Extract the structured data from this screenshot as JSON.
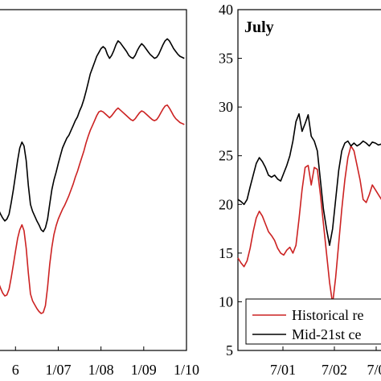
{
  "chart_data": [
    {
      "type": "line",
      "title": "",
      "xlabel": "",
      "ylabel": "",
      "x_ticks": [
        "6",
        "1/07",
        "1/08",
        "1/09",
        "1/10"
      ],
      "x_tick_values": [
        0,
        1,
        2,
        3,
        4
      ],
      "ylim": [
        5,
        40
      ],
      "xlim": [
        -0.4,
        4.0
      ],
      "grid": false,
      "series": [
        {
          "color": "#000000",
          "x": [
            -0.4,
            -0.35,
            -0.3,
            -0.25,
            -0.2,
            -0.15,
            -0.1,
            -0.05,
            0.0,
            0.05,
            0.1,
            0.15,
            0.2,
            0.25,
            0.3,
            0.35,
            0.4,
            0.45,
            0.5,
            0.55,
            0.6,
            0.65,
            0.7,
            0.75,
            0.8,
            0.85,
            0.9,
            0.95,
            1.0,
            1.05,
            1.1,
            1.15,
            1.2,
            1.25,
            1.3,
            1.35,
            1.4,
            1.45,
            1.5,
            1.55,
            1.6,
            1.65,
            1.7,
            1.75,
            1.8,
            1.85,
            1.9,
            1.95,
            2.0,
            2.05,
            2.1,
            2.15,
            2.2,
            2.25,
            2.3,
            2.35,
            2.4,
            2.45,
            2.5,
            2.55,
            2.6,
            2.65,
            2.7,
            2.75,
            2.8,
            2.85,
            2.9,
            2.95,
            3.0,
            3.05,
            3.1,
            3.15,
            3.2,
            3.25,
            3.3,
            3.35,
            3.4,
            3.45,
            3.5,
            3.55,
            3.6,
            3.65,
            3.7,
            3.75,
            3.8,
            3.85,
            3.9,
            3.95
          ],
          "values": [
            19.5,
            19.0,
            18.6,
            18.3,
            18.5,
            19.0,
            20.2,
            21.5,
            23.0,
            24.5,
            25.8,
            26.4,
            26.0,
            24.5,
            22.0,
            20.0,
            19.3,
            18.8,
            18.3,
            17.9,
            17.4,
            17.2,
            17.6,
            18.5,
            20.0,
            21.5,
            22.5,
            23.3,
            24.2,
            25.0,
            25.8,
            26.3,
            26.8,
            27.1,
            27.6,
            28.1,
            28.6,
            29.0,
            29.6,
            30.1,
            30.8,
            31.6,
            32.5,
            33.4,
            34.0,
            34.6,
            35.2,
            35.6,
            36.0,
            36.2,
            36.0,
            35.4,
            35.0,
            35.3,
            35.8,
            36.4,
            36.8,
            36.6,
            36.3,
            36.0,
            35.7,
            35.3,
            35.1,
            35.0,
            35.3,
            35.8,
            36.2,
            36.5,
            36.3,
            36.0,
            35.7,
            35.4,
            35.2,
            35.0,
            35.1,
            35.4,
            35.9,
            36.4,
            36.8,
            37.0,
            36.8,
            36.4,
            36.0,
            35.7,
            35.4,
            35.2,
            35.1,
            35.0
          ]
        },
        {
          "color": "#cc2222",
          "x": [
            -0.4,
            -0.35,
            -0.3,
            -0.25,
            -0.2,
            -0.15,
            -0.1,
            -0.05,
            0.0,
            0.05,
            0.1,
            0.15,
            0.2,
            0.25,
            0.3,
            0.35,
            0.4,
            0.45,
            0.5,
            0.55,
            0.6,
            0.65,
            0.7,
            0.75,
            0.8,
            0.85,
            0.9,
            0.95,
            1.0,
            1.05,
            1.1,
            1.15,
            1.2,
            1.25,
            1.3,
            1.35,
            1.4,
            1.45,
            1.5,
            1.55,
            1.6,
            1.65,
            1.7,
            1.75,
            1.8,
            1.85,
            1.9,
            1.95,
            2.0,
            2.05,
            2.1,
            2.15,
            2.2,
            2.25,
            2.3,
            2.35,
            2.4,
            2.45,
            2.5,
            2.55,
            2.6,
            2.65,
            2.7,
            2.75,
            2.8,
            2.85,
            2.9,
            2.95,
            3.0,
            3.05,
            3.1,
            3.15,
            3.2,
            3.25,
            3.3,
            3.35,
            3.4,
            3.45,
            3.5,
            3.55,
            3.6,
            3.65,
            3.7,
            3.75,
            3.8,
            3.85,
            3.9,
            3.95
          ],
          "values": [
            12.0,
            11.4,
            10.9,
            10.6,
            10.7,
            11.3,
            12.5,
            13.8,
            15.2,
            16.5,
            17.4,
            17.9,
            17.3,
            15.5,
            13.0,
            10.8,
            10.1,
            9.7,
            9.3,
            9.0,
            8.8,
            8.9,
            9.6,
            11.5,
            13.8,
            15.6,
            16.9,
            17.8,
            18.5,
            19.0,
            19.5,
            19.9,
            20.4,
            20.9,
            21.5,
            22.1,
            22.8,
            23.4,
            24.1,
            24.8,
            25.5,
            26.3,
            27.0,
            27.6,
            28.1,
            28.6,
            29.1,
            29.5,
            29.6,
            29.5,
            29.3,
            29.1,
            28.9,
            29.1,
            29.4,
            29.7,
            29.9,
            29.7,
            29.5,
            29.3,
            29.1,
            28.9,
            28.7,
            28.6,
            28.8,
            29.1,
            29.4,
            29.6,
            29.5,
            29.3,
            29.1,
            28.9,
            28.7,
            28.6,
            28.7,
            29.0,
            29.4,
            29.8,
            30.1,
            30.2,
            29.9,
            29.5,
            29.1,
            28.8,
            28.6,
            28.4,
            28.3,
            28.2
          ]
        }
      ]
    },
    {
      "type": "line",
      "title": "July",
      "xlabel": "",
      "ylabel": "",
      "x_ticks": [
        "7/01",
        "7/02",
        "7/0"
      ],
      "y_ticks": [
        "5",
        "10",
        "15",
        "20",
        "25",
        "30",
        "35",
        "40"
      ],
      "ylim": [
        5,
        40
      ],
      "xlim": [
        0,
        100
      ],
      "grid": false,
      "legend_placement": "bottom-right",
      "series": [
        {
          "name": "Historical re",
          "color": "#cc2222",
          "x": [
            0,
            2,
            4,
            6,
            8,
            10,
            12,
            14,
            16,
            18,
            20,
            22,
            24,
            26,
            28,
            30,
            32,
            34,
            36,
            38,
            40,
            42,
            44,
            46,
            48,
            50,
            52,
            54,
            56,
            58,
            60,
            62,
            64,
            66,
            68,
            70,
            72,
            74,
            76,
            78,
            80,
            82,
            84,
            86,
            88,
            90,
            92,
            94,
            96,
            98,
            100
          ],
          "values": [
            14.5,
            14.0,
            13.6,
            14.2,
            15.5,
            17.2,
            18.6,
            19.3,
            18.8,
            18.0,
            17.2,
            16.8,
            16.3,
            15.5,
            15.0,
            14.8,
            15.3,
            15.6,
            15.0,
            15.8,
            18.5,
            21.5,
            23.8,
            24.0,
            22.0,
            23.8,
            23.6,
            21.0,
            18.0,
            15.0,
            12.0,
            9.8,
            12.5,
            16.0,
            19.5,
            22.5,
            24.8,
            26.0,
            25.5,
            24.0,
            22.5,
            20.5,
            20.2,
            21.0,
            22.0,
            21.5,
            21.0,
            20.5,
            21.0,
            20.8,
            20.6
          ]
        },
        {
          "name": "Mid-21st ce",
          "color": "#000000",
          "x": [
            0,
            2,
            4,
            6,
            8,
            10,
            12,
            14,
            16,
            18,
            20,
            22,
            24,
            26,
            28,
            30,
            32,
            34,
            36,
            38,
            40,
            42,
            44,
            46,
            48,
            50,
            52,
            54,
            56,
            58,
            60,
            62,
            64,
            66,
            68,
            70,
            72,
            74,
            76,
            78,
            80,
            82,
            84,
            86,
            88,
            90,
            92,
            94,
            96,
            98,
            100
          ],
          "values": [
            20.5,
            20.3,
            20.0,
            20.5,
            21.8,
            23.0,
            24.2,
            24.8,
            24.4,
            23.8,
            23.0,
            22.8,
            23.0,
            22.6,
            22.4,
            23.2,
            24.0,
            25.0,
            26.5,
            28.5,
            29.3,
            27.5,
            28.3,
            29.2,
            27.0,
            26.5,
            25.5,
            22.5,
            19.5,
            17.5,
            15.8,
            17.5,
            20.5,
            23.5,
            25.5,
            26.3,
            26.5,
            26.0,
            26.3,
            26.0,
            26.2,
            26.5,
            26.3,
            26.0,
            26.4,
            26.3,
            26.1,
            26.2,
            26.0,
            26.3,
            26.1
          ]
        }
      ]
    }
  ]
}
